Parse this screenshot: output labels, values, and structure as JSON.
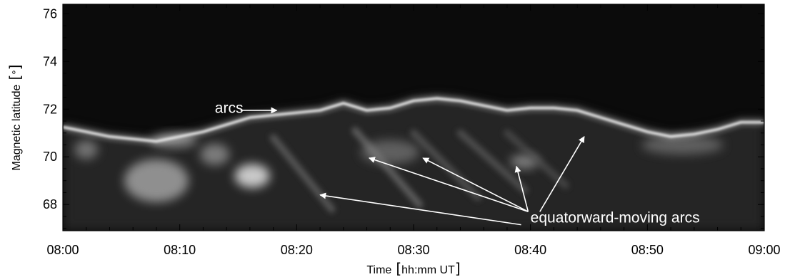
{
  "chart_data": {
    "type": "heatmap",
    "title": "",
    "xlabel": "Time",
    "xlabel_unit": "hh:mm UT",
    "ylabel": "Magnetic latitude",
    "ylabel_unit": "°",
    "x_ticks": [
      "08:00",
      "08:10",
      "08:20",
      "08:30",
      "08:40",
      "08:50",
      "09:00"
    ],
    "x_minor_step_min": 2,
    "xlim": [
      "08:00",
      "09:00"
    ],
    "y_ticks": [
      68,
      70,
      72,
      74,
      76
    ],
    "y_minor_step": 0.5,
    "ylim": [
      66.9,
      76.4
    ],
    "colormap": "grayscale",
    "background_color": "#0b0b0b",
    "grid": false,
    "legend": "none",
    "auroral_boundary": [
      {
        "t": 0,
        "lat": 71.4
      },
      {
        "t": 2,
        "lat": 71.2
      },
      {
        "t": 4,
        "lat": 71.0
      },
      {
        "t": 6,
        "lat": 70.9
      },
      {
        "t": 8,
        "lat": 70.8
      },
      {
        "t": 10,
        "lat": 71.0
      },
      {
        "t": 12,
        "lat": 71.2
      },
      {
        "t": 14,
        "lat": 71.5
      },
      {
        "t": 16,
        "lat": 71.8
      },
      {
        "t": 18,
        "lat": 71.9
      },
      {
        "t": 20,
        "lat": 72.0
      },
      {
        "t": 22,
        "lat": 72.1
      },
      {
        "t": 24,
        "lat": 72.4
      },
      {
        "t": 26,
        "lat": 72.1
      },
      {
        "t": 28,
        "lat": 72.2
      },
      {
        "t": 30,
        "lat": 72.5
      },
      {
        "t": 32,
        "lat": 72.6
      },
      {
        "t": 34,
        "lat": 72.5
      },
      {
        "t": 36,
        "lat": 72.3
      },
      {
        "t": 38,
        "lat": 72.1
      },
      {
        "t": 40,
        "lat": 72.2
      },
      {
        "t": 42,
        "lat": 72.2
      },
      {
        "t": 44,
        "lat": 72.1
      },
      {
        "t": 46,
        "lat": 71.8
      },
      {
        "t": 48,
        "lat": 71.5
      },
      {
        "t": 50,
        "lat": 71.2
      },
      {
        "t": 52,
        "lat": 71.0
      },
      {
        "t": 54,
        "lat": 71.1
      },
      {
        "t": 56,
        "lat": 71.3
      },
      {
        "t": 58,
        "lat": 71.6
      },
      {
        "t": 60,
        "lat": 71.6
      }
    ],
    "diffuse_patches": [
      {
        "t": 8.0,
        "lat": 69.0,
        "dt": 5.5,
        "dlat": 1.8,
        "brightness": 0.7
      },
      {
        "t": 16.2,
        "lat": 69.2,
        "dt": 3.0,
        "dlat": 1.0,
        "brightness": 1.0
      },
      {
        "t": 9.5,
        "lat": 70.7,
        "dt": 4.0,
        "dlat": 0.6,
        "brightness": 0.65
      },
      {
        "t": 2.0,
        "lat": 70.3,
        "dt": 2.0,
        "dlat": 0.8,
        "brightness": 0.55
      },
      {
        "t": 13.0,
        "lat": 70.1,
        "dt": 2.5,
        "dlat": 0.9,
        "brightness": 0.6
      },
      {
        "t": 28.0,
        "lat": 70.2,
        "dt": 5.0,
        "dlat": 1.0,
        "brightness": 0.45
      },
      {
        "t": 39.5,
        "lat": 69.8,
        "dt": 2.5,
        "dlat": 0.6,
        "brightness": 0.6
      },
      {
        "t": 53.0,
        "lat": 70.5,
        "dt": 7.0,
        "dlat": 0.8,
        "brightness": 0.45
      }
    ],
    "streaks": [
      {
        "t0": 18.0,
        "lat0": 70.8,
        "t1": 23.0,
        "lat1": 67.8,
        "brightness": 0.45
      },
      {
        "t0": 25.0,
        "lat0": 71.1,
        "t1": 30.5,
        "lat1": 68.0,
        "brightness": 0.5
      },
      {
        "t0": 30.0,
        "lat0": 71.0,
        "t1": 35.5,
        "lat1": 68.3,
        "brightness": 0.4
      },
      {
        "t0": 34.0,
        "lat0": 71.0,
        "t1": 39.5,
        "lat1": 68.6,
        "brightness": 0.4
      },
      {
        "t0": 38.0,
        "lat0": 71.0,
        "t1": 43.0,
        "lat1": 68.8,
        "brightness": 0.35
      }
    ],
    "annotations": [
      {
        "text": "arcs",
        "text_at": {
          "t": 13.0,
          "lat": 71.85
        },
        "arrows": [
          {
            "from": {
              "t": 15.2,
              "lat": 71.95
            },
            "to": {
              "t": 18.3,
              "lat": 71.95
            }
          }
        ]
      },
      {
        "text": "equatorward-moving arcs",
        "text_at": {
          "t": 40.0,
          "lat": 67.25
        },
        "arrows": [
          {
            "from": {
              "t": 39.8,
              "lat": 67.7
            },
            "to": {
              "t": 26.2,
              "lat": 69.95
            }
          },
          {
            "from": {
              "t": 39.8,
              "lat": 67.7
            },
            "to": {
              "t": 30.8,
              "lat": 69.95
            }
          },
          {
            "from": {
              "t": 39.8,
              "lat": 67.7
            },
            "to": {
              "t": 38.8,
              "lat": 69.6
            }
          },
          {
            "from": {
              "t": 40.8,
              "lat": 67.7
            },
            "to": {
              "t": 44.6,
              "lat": 70.85
            }
          },
          {
            "from": {
              "t": 39.2,
              "lat": 67.15
            },
            "to": {
              "t": 22.0,
              "lat": 68.4
            }
          }
        ]
      }
    ]
  }
}
